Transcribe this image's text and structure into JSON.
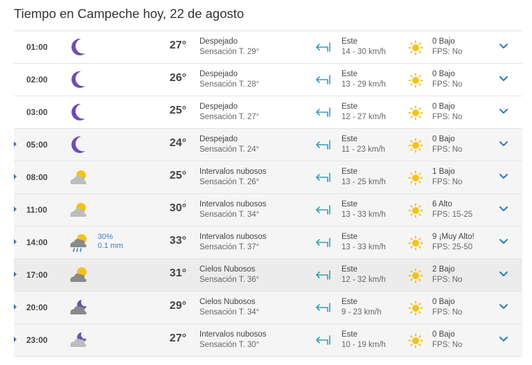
{
  "page_title": "Tiempo en Campeche hoy, 22 de agosto",
  "rows": [
    {
      "time": "01:00",
      "icon": "moon-icon",
      "temp": "27°",
      "cond": "Despejado",
      "feel": "Sensación T. 29°",
      "dir": "Este",
      "speed": "14 - 30 km/h",
      "uv": "0 Bajo",
      "fps": "FPS: No",
      "expandable": false,
      "bg": "white"
    },
    {
      "time": "02:00",
      "icon": "moon-icon",
      "temp": "26°",
      "cond": "Despejado",
      "feel": "Sensación T. 28°",
      "dir": "Este",
      "speed": "13 - 29 km/h",
      "uv": "0 Bajo",
      "fps": "FPS: No",
      "expandable": false,
      "bg": "white"
    },
    {
      "time": "03:00",
      "icon": "moon-icon",
      "temp": "25°",
      "cond": "Despejado",
      "feel": "Sensación T. 27°",
      "dir": "Este",
      "speed": "12 - 27 km/h",
      "uv": "0 Bajo",
      "fps": "FPS: No",
      "expandable": false,
      "bg": "white"
    },
    {
      "time": "05:00",
      "icon": "moon-icon",
      "temp": "24°",
      "cond": "Despejado",
      "feel": "Sensación T. 24°",
      "dir": "Este",
      "speed": "11 - 23 km/h",
      "uv": "0 Bajo",
      "fps": "FPS: No",
      "expandable": true,
      "bg": "shade"
    },
    {
      "time": "08:00",
      "icon": "partly-cloudy-icon",
      "temp": "25°",
      "cond": "Intervalos nubosos",
      "feel": "Sensación T. 26°",
      "dir": "Este",
      "speed": "13 - 25 km/h",
      "uv": "1 Bajo",
      "fps": "FPS: No",
      "expandable": true,
      "bg": "shade"
    },
    {
      "time": "11:00",
      "icon": "partly-cloudy-icon",
      "temp": "30°",
      "cond": "Intervalos nubosos",
      "feel": "Sensación T. 34°",
      "dir": "Este",
      "speed": "13 - 33 km/h",
      "uv": "6 Alto",
      "fps": "FPS: 15-25",
      "expandable": true,
      "bg": "shade"
    },
    {
      "time": "14:00",
      "icon": "cloud-rain-icon",
      "rain_pct": "30%",
      "rain_mm": "0.1 mm",
      "temp": "33°",
      "cond": "Intervalos nubosos",
      "feel": "Sensación T. 37°",
      "dir": "Este",
      "speed": "13 - 33 km/h",
      "uv": "9 ¡Muy Alto!",
      "fps": "FPS: 25-50",
      "expandable": true,
      "bg": "shade"
    },
    {
      "time": "17:00",
      "icon": "cloudy-icon",
      "temp": "31°",
      "cond": "Cielos Nubosos",
      "feel": "Sensación T. 36°",
      "dir": "Este",
      "speed": "12 - 32 km/h",
      "uv": "2 Bajo",
      "fps": "FPS: No",
      "expandable": true,
      "bg": "hl"
    },
    {
      "time": "20:00",
      "icon": "cloudy-night-icon",
      "temp": "29°",
      "cond": "Cielos Nubosos",
      "feel": "Sensación T. 34°",
      "dir": "Este",
      "speed": "9 - 23 km/h",
      "uv": "0 Bajo",
      "fps": "FPS: No",
      "expandable": true,
      "bg": "shade"
    },
    {
      "time": "23:00",
      "icon": "partly-cloudy-night-icon",
      "temp": "27°",
      "cond": "Intervalos nubosos",
      "feel": "Sensación T. 30°",
      "dir": "Este",
      "speed": "10 - 19 km/h",
      "uv": "0 Bajo",
      "fps": "FPS: No",
      "expandable": true,
      "bg": "shade"
    }
  ],
  "colors": {
    "moon": "#6b4fb3",
    "sun": "#f5c21b",
    "cloud_dark": "#8a8a8a",
    "cloud_light": "#bdbdbd",
    "wind": "#2f9fb8",
    "chevron": "#2e78b9",
    "rain_text": "#3a7bbf"
  }
}
